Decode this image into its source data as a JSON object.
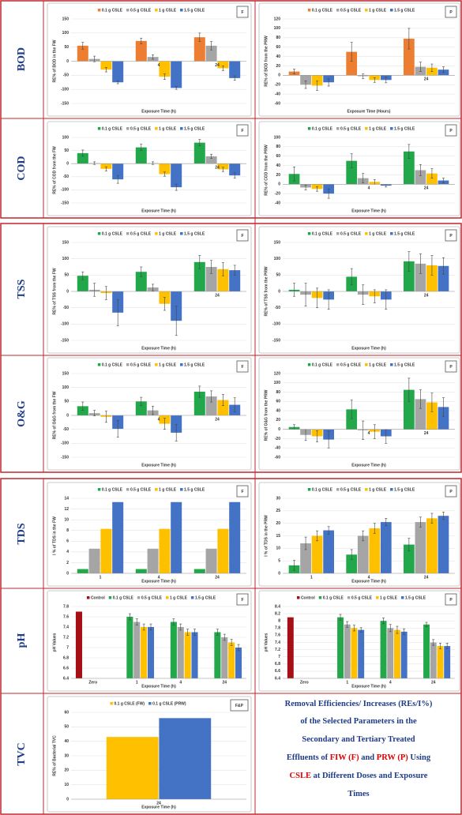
{
  "row_labels": [
    "BOD",
    "COD",
    "TSS",
    "O&G",
    "TDS",
    "pH",
    "TVC"
  ],
  "caption": [
    [
      {
        "text": "Removal Efficiencies/ Increases (REs/I%)",
        "color": "#1f3c88"
      }
    ],
    [
      {
        "text": "of the Selected Parameters in the",
        "color": "#1f3c88"
      }
    ],
    [
      {
        "text": "Secondary and Tertiary Treated",
        "color": "#1f3c88"
      }
    ],
    [
      {
        "text": "Effluents of ",
        "color": "#1f3c88"
      },
      {
        "text": "FIW (F)",
        "color": "#e00000"
      },
      {
        "text": " and ",
        "color": "#1f3c88"
      },
      {
        "text": "PRW (P)",
        "color": "#e00000"
      },
      {
        "text": " Using",
        "color": "#1f3c88"
      }
    ],
    [
      {
        "text": "CSLE",
        "color": "#e00000"
      },
      {
        "text": " at Different Doses and Exposure",
        "color": "#1f3c88"
      }
    ],
    [
      {
        "text": "Times",
        "color": "#1f3c88"
      }
    ]
  ],
  "chart_data": [
    {
      "type": "bar",
      "badge": "F",
      "ylabel": "RE% of BOD in the FW",
      "xlabel": "Exposure Time (h)",
      "grid": true,
      "categories": [
        null,
        "4",
        "24"
      ],
      "ylim": [
        -150,
        150
      ],
      "yticks": [
        -150,
        -100,
        -50,
        0,
        50,
        100,
        150
      ],
      "series": [
        {
          "name": "0.1 g CSLE",
          "color": "#ed7d31",
          "values": [
            55,
            72,
            85
          ],
          "errors": [
            12,
            10,
            15
          ]
        },
        {
          "name": "0.5 g CSLE",
          "color": "#a5a5a5",
          "values": [
            8,
            15,
            55
          ],
          "errors": [
            10,
            8,
            15
          ]
        },
        {
          "name": "1 g CSLE",
          "color": "#ffc000",
          "values": [
            -30,
            -55,
            -25
          ],
          "errors": [
            8,
            10,
            8
          ]
        },
        {
          "name": "1.5 g CSLE",
          "color": "#4472c4",
          "values": [
            -75,
            -95,
            -60
          ],
          "errors": [
            5,
            5,
            8
          ]
        }
      ]
    },
    {
      "type": "bar",
      "badge": "P",
      "ylabel": "RE% of BOD from the PRW",
      "xlabel": "Exposure Time (Hours)",
      "grid": true,
      "categories": [
        null,
        null,
        "24"
      ],
      "ylim": [
        -60,
        120
      ],
      "yticks": [
        -60,
        -40,
        -20,
        0,
        20,
        40,
        60,
        80,
        100,
        120
      ],
      "series": [
        {
          "name": "0.1 g CSLE",
          "color": "#ed7d31",
          "values": [
            8,
            50,
            78
          ],
          "errors": [
            5,
            20,
            22
          ]
        },
        {
          "name": "0.5 g CSLE",
          "color": "#a5a5a5",
          "values": [
            -20,
            -2,
            18
          ],
          "errors": [
            8,
            5,
            10
          ]
        },
        {
          "name": "1 g CSLE",
          "color": "#ffc000",
          "values": [
            -22,
            -10,
            16
          ],
          "errors": [
            10,
            5,
            8
          ]
        },
        {
          "name": "1.5 g CSLE",
          "color": "#4472c4",
          "values": [
            -15,
            -10,
            12
          ],
          "errors": [
            8,
            6,
            6
          ]
        }
      ]
    },
    {
      "type": "bar",
      "badge": "F",
      "ylabel": "RE% of COD from the FW",
      "xlabel": "Exposure Time (h)",
      "grid": true,
      "categories": [
        null,
        null,
        "24"
      ],
      "ylim": [
        -150,
        100
      ],
      "yticks": [
        -150,
        -100,
        -50,
        0,
        50,
        100
      ],
      "series": [
        {
          "name": "0.1 g CSLE",
          "color": "#22a84a",
          "values": [
            40,
            62,
            80
          ],
          "errors": [
            12,
            12,
            12
          ]
        },
        {
          "name": "0.5 g CSLE",
          "color": "#a5a5a5",
          "values": [
            2,
            2,
            28
          ],
          "errors": [
            5,
            5,
            8
          ]
        },
        {
          "name": "1 g CSLE",
          "color": "#ffc000",
          "values": [
            -20,
            -40,
            -22
          ],
          "errors": [
            8,
            8,
            8
          ]
        },
        {
          "name": "1.5 g CSLE",
          "color": "#4472c4",
          "values": [
            -60,
            -90,
            -45
          ],
          "errors": [
            15,
            12,
            10
          ]
        }
      ]
    },
    {
      "type": "bar",
      "badge": "P",
      "ylabel": "RE% of COD from the PRW",
      "xlabel": "Exposure Time (h)",
      "grid": true,
      "categories": [
        null,
        "4",
        "24"
      ],
      "ylim": [
        -40,
        100
      ],
      "yticks": [
        -40,
        -20,
        0,
        20,
        40,
        60,
        80,
        100
      ],
      "series": [
        {
          "name": "0.1 g CSLE",
          "color": "#22a84a",
          "values": [
            22,
            50,
            70
          ],
          "errors": [
            15,
            15,
            15
          ]
        },
        {
          "name": "0.5 g CSLE",
          "color": "#a5a5a5",
          "values": [
            -7,
            13,
            30
          ],
          "errors": [
            5,
            10,
            12
          ]
        },
        {
          "name": "1 g CSLE",
          "color": "#ffc000",
          "values": [
            -10,
            5,
            23
          ],
          "errors": [
            5,
            5,
            10
          ]
        },
        {
          "name": "1.5 g CSLE",
          "color": "#4472c4",
          "values": [
            -20,
            -3,
            8
          ],
          "errors": [
            10,
            3,
            5
          ]
        }
      ]
    },
    {
      "type": "bar",
      "badge": "F",
      "ylabel": "RE% of TSS from the FW",
      "xlabel": "Exposure Time (h)",
      "grid": true,
      "categories": [
        null,
        null,
        "24"
      ],
      "ylim": [
        -150,
        150
      ],
      "yticks": [
        -150,
        -100,
        -50,
        0,
        50,
        100,
        150
      ],
      "series": [
        {
          "name": "0.1 g CSLE",
          "color": "#22a84a",
          "values": [
            48,
            60,
            90
          ],
          "errors": [
            12,
            15,
            20
          ]
        },
        {
          "name": "0.5 g CSLE",
          "color": "#a5a5a5",
          "values": [
            5,
            12,
            75
          ],
          "errors": [
            20,
            10,
            20
          ]
        },
        {
          "name": "1 g CSLE",
          "color": "#ffc000",
          "values": [
            -5,
            -38,
            68
          ],
          "errors": [
            20,
            20,
            20
          ]
        },
        {
          "name": "1.5 g CSLE",
          "color": "#4472c4",
          "values": [
            -65,
            -90,
            65
          ],
          "errors": [
            40,
            45,
            15
          ]
        }
      ]
    },
    {
      "type": "bar",
      "badge": "P",
      "ylabel": "RE% of TSS from the PRW",
      "xlabel": "Exposure Time (h)",
      "grid": true,
      "categories": [
        null,
        null,
        "24"
      ],
      "ylim": [
        -150,
        150
      ],
      "yticks": [
        -150,
        -100,
        -50,
        0,
        50,
        100,
        150
      ],
      "series": [
        {
          "name": "0.1 g CSLE",
          "color": "#22a84a",
          "values": [
            5,
            45,
            92
          ],
          "errors": [
            20,
            25,
            30
          ]
        },
        {
          "name": "0.5 g CSLE",
          "color": "#a5a5a5",
          "values": [
            -10,
            -10,
            85
          ],
          "errors": [
            35,
            30,
            30
          ]
        },
        {
          "name": "1 g CSLE",
          "color": "#ffc000",
          "values": [
            -20,
            -15,
            80
          ],
          "errors": [
            30,
            20,
            30
          ]
        },
        {
          "name": "1.5 g CSLE",
          "color": "#4472c4",
          "values": [
            -25,
            -25,
            78
          ],
          "errors": [
            30,
            30,
            25
          ]
        }
      ]
    },
    {
      "type": "bar",
      "badge": "F",
      "ylabel": "RE% of O&G from the FW",
      "xlabel": "Exposure Time (h)",
      "grid": true,
      "categories": [
        null,
        "4",
        "24"
      ],
      "ylim": [
        -150,
        150
      ],
      "yticks": [
        -150,
        -100,
        -50,
        0,
        50,
        100,
        150
      ],
      "series": [
        {
          "name": "0.1 g CSLE",
          "color": "#22a84a",
          "values": [
            33,
            50,
            85
          ],
          "errors": [
            15,
            15,
            20
          ]
        },
        {
          "name": "0.5 g CSLE",
          "color": "#a5a5a5",
          "values": [
            8,
            18,
            68
          ],
          "errors": [
            10,
            15,
            20
          ]
        },
        {
          "name": "1 g CSLE",
          "color": "#ffc000",
          "values": [
            -5,
            -30,
            55
          ],
          "errors": [
            20,
            20,
            20
          ]
        },
        {
          "name": "1.5 g CSLE",
          "color": "#4472c4",
          "values": [
            -48,
            -62,
            38
          ],
          "errors": [
            30,
            30,
            25
          ]
        }
      ]
    },
    {
      "type": "bar",
      "badge": "P",
      "ylabel": "RE% of O&G from the PRW",
      "xlabel": "Exposure Time (h)",
      "grid": true,
      "categories": [
        null,
        "4",
        "24"
      ],
      "ylim": [
        -60,
        120
      ],
      "yticks": [
        -60,
        -40,
        -20,
        0,
        20,
        40,
        60,
        80,
        100,
        120
      ],
      "series": [
        {
          "name": "0.1 g CSLE",
          "color": "#22a84a",
          "values": [
            5,
            43,
            85
          ],
          "errors": [
            5,
            20,
            25
          ]
        },
        {
          "name": "0.5 g CSLE",
          "color": "#a5a5a5",
          "values": [
            -12,
            -2,
            65
          ],
          "errors": [
            12,
            20,
            20
          ]
        },
        {
          "name": "1 g CSLE",
          "color": "#ffc000",
          "values": [
            -15,
            -5,
            58
          ],
          "errors": [
            12,
            15,
            20
          ]
        },
        {
          "name": "1.5 g CSLE",
          "color": "#4472c4",
          "values": [
            -22,
            -15,
            48
          ],
          "errors": [
            18,
            15,
            20
          ]
        }
      ]
    },
    {
      "type": "bar",
      "badge": "F",
      "ylabel": "I % of TDS in the FW",
      "xlabel": "Exposure Time (h)",
      "grid": true,
      "categories": [
        "1",
        "4",
        "24"
      ],
      "ylim": [
        0,
        14
      ],
      "yticks": [
        0,
        2,
        4,
        6,
        8,
        10,
        12,
        14
      ],
      "series": [
        {
          "name": "0.1 g CSLE",
          "color": "#22a84a",
          "values": [
            0.8,
            0.8,
            0.8
          ]
        },
        {
          "name": "0.5 g CSLE",
          "color": "#a5a5a5",
          "values": [
            4.6,
            4.6,
            4.6
          ]
        },
        {
          "name": "1 g CSLE",
          "color": "#ffc000",
          "values": [
            8.3,
            8.3,
            8.3
          ]
        },
        {
          "name": "1.5 g CSLE",
          "color": "#4472c4",
          "values": [
            13.3,
            13.3,
            13.3
          ]
        }
      ]
    },
    {
      "type": "bar",
      "badge": "P",
      "ylabel": "I % of TDS in the PRW",
      "xlabel": "Exposure Time (h)",
      "grid": true,
      "categories": [
        "1",
        "4",
        "24"
      ],
      "ylim": [
        0,
        30
      ],
      "yticks": [
        0,
        5,
        10,
        15,
        20,
        25,
        30
      ],
      "series": [
        {
          "name": "0.1 g CSLE",
          "color": "#22a84a",
          "values": [
            3.2,
            7.5,
            11.5
          ],
          "errors": [
            2,
            2,
            2.5
          ]
        },
        {
          "name": "0.5 g CSLE",
          "color": "#a5a5a5",
          "values": [
            12,
            15,
            20.5
          ],
          "errors": [
            2.5,
            2,
            2
          ]
        },
        {
          "name": "1 g CSLE",
          "color": "#ffc000",
          "values": [
            15,
            18,
            22
          ],
          "errors": [
            2,
            2,
            2
          ]
        },
        {
          "name": "1.5 g CSLE",
          "color": "#4472c4",
          "values": [
            17.2,
            20.5,
            23
          ],
          "errors": [
            1.5,
            1.5,
            1.5
          ]
        }
      ]
    },
    {
      "type": "bar",
      "badge": "F",
      "ylabel": "pH Values",
      "xlabel": "Exposure Time (h)",
      "grid": true,
      "categories": [
        "Zero",
        "1",
        "4",
        "24"
      ],
      "ylim": [
        6.4,
        7.8
      ],
      "yticks": [
        6.4,
        6.6,
        6.8,
        7,
        7.2,
        7.4,
        7.6,
        7.8
      ],
      "series": [
        {
          "name": "Control",
          "color": "#a50f15",
          "values": [
            7.7,
            null,
            null,
            null
          ]
        },
        {
          "name": "0.1 g CSLE",
          "color": "#22a84a",
          "values": [
            null,
            7.6,
            7.5,
            7.3
          ],
          "errors": [
            null,
            0.06,
            0.06,
            0.06
          ]
        },
        {
          "name": "0.5 g CSLE",
          "color": "#a5a5a5",
          "values": [
            null,
            7.5,
            7.4,
            7.2
          ],
          "errors": [
            null,
            0.06,
            0.06,
            0.06
          ]
        },
        {
          "name": "1 g CSLE",
          "color": "#ffc000",
          "values": [
            null,
            7.4,
            7.3,
            7.1
          ],
          "errors": [
            null,
            0.06,
            0.06,
            0.06
          ]
        },
        {
          "name": "1.5 g CSLE",
          "color": "#4472c4",
          "values": [
            null,
            7.4,
            7.3,
            7.0
          ],
          "errors": [
            null,
            0.06,
            0.06,
            0.06
          ]
        }
      ]
    },
    {
      "type": "bar",
      "badge": "P",
      "ylabel": "pH Values",
      "xlabel": "Exposure Time (h)",
      "grid": true,
      "categories": [
        "Zero",
        "1",
        "4",
        "24"
      ],
      "ylim": [
        6.4,
        8.4
      ],
      "yticks": [
        6.4,
        6.6,
        6.8,
        7,
        7.2,
        7.4,
        7.6,
        7.8,
        8,
        8.2,
        8.4
      ],
      "series": [
        {
          "name": "Control",
          "color": "#a50f15",
          "values": [
            8.1,
            null,
            null,
            null
          ]
        },
        {
          "name": "0.1 g CSLE",
          "color": "#22a84a",
          "values": [
            null,
            8.1,
            8.0,
            7.9
          ],
          "errors": [
            null,
            0.08,
            0.08,
            0.06
          ]
        },
        {
          "name": "0.5 g CSLE",
          "color": "#a5a5a5",
          "values": [
            null,
            7.9,
            7.8,
            7.4
          ],
          "errors": [
            null,
            0.08,
            0.1,
            0.08
          ]
        },
        {
          "name": "1 g CSLE",
          "color": "#ffc000",
          "values": [
            null,
            7.8,
            7.75,
            7.3
          ],
          "errors": [
            null,
            0.08,
            0.1,
            0.08
          ]
        },
        {
          "name": "1.5 g CSLE",
          "color": "#4472c4",
          "values": [
            null,
            7.75,
            7.7,
            7.3
          ],
          "errors": [
            null,
            0.06,
            0.08,
            0.08
          ]
        }
      ]
    },
    {
      "type": "bar",
      "badge": "F&P",
      "ylabel": "RE% of Bacterial TVC",
      "xlabel": "Exposure Time (h)",
      "grid": true,
      "categories": [
        "24"
      ],
      "ylim": [
        0,
        60
      ],
      "yticks": [
        0,
        10,
        20,
        30,
        40,
        50,
        60
      ],
      "series": [
        {
          "name": "0.1 g CSLE (FW)",
          "color": "#ffc000",
          "values": [
            43
          ]
        },
        {
          "name": "0.1 g CSLE (PRW)",
          "color": "#4472c4",
          "values": [
            56
          ]
        }
      ]
    }
  ]
}
